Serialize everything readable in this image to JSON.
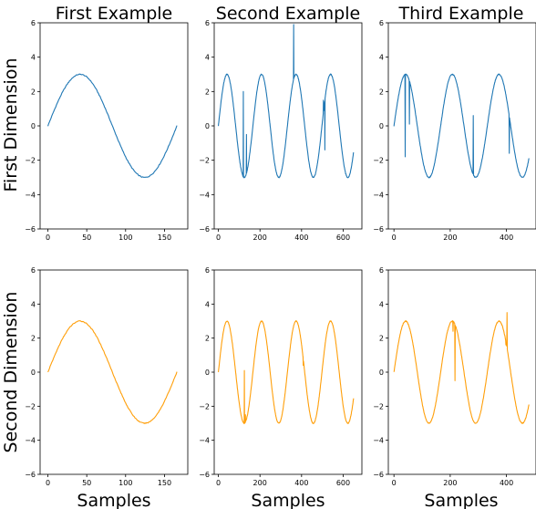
{
  "column_titles": [
    "First Example",
    "Second Example",
    "Third Example"
  ],
  "row_labels": [
    "First Dimension",
    "Second Dimension"
  ],
  "x_axis_label": "Samples",
  "colors": {
    "row1": "#1f77b4",
    "row2": "#ff9f0a"
  },
  "chart_data": [
    {
      "type": "line",
      "row": 1,
      "col": 1,
      "title": "First Example",
      "ylabel": "First Dimension",
      "xlabel": "",
      "ylim": [
        -6,
        6
      ],
      "yticks": [
        -6,
        -4,
        -2,
        0,
        2,
        4,
        6
      ],
      "xlim": [
        -10,
        180
      ],
      "xticks": [
        0,
        50,
        100,
        150
      ],
      "grid": false,
      "series": [
        {
          "length": 166,
          "period": 166,
          "amplitude": 3,
          "spikes": []
        }
      ]
    },
    {
      "type": "line",
      "row": 1,
      "col": 2,
      "title": "Second Example",
      "ylabel": "",
      "xlabel": "",
      "ylim": [
        -6,
        6
      ],
      "yticks": [
        -6,
        -4,
        -2,
        0,
        2,
        4,
        6
      ],
      "xlim": [
        -20,
        690
      ],
      "xticks": [
        0,
        200,
        400,
        600
      ],
      "grid": false,
      "series": [
        {
          "length": 650,
          "period": 166,
          "amplitude": 3,
          "spikes": [
            {
              "x": 120,
              "y": 2.0
            },
            {
              "x": 135,
              "y": -0.5
            },
            {
              "x": 362,
              "y": 5.9
            },
            {
              "x": 505,
              "y": 1.5
            },
            {
              "x": 512,
              "y": -1.4
            }
          ]
        }
      ]
    },
    {
      "type": "line",
      "row": 1,
      "col": 3,
      "title": "Third Example",
      "ylabel": "",
      "xlabel": "",
      "ylim": [
        -6,
        6
      ],
      "yticks": [
        -6,
        -4,
        -2,
        0,
        2,
        4,
        6
      ],
      "xlim": [
        -20,
        505
      ],
      "xticks": [
        0,
        200,
        400
      ],
      "grid": false,
      "series": [
        {
          "length": 480,
          "period": 166,
          "amplitude": 3,
          "spikes": [
            {
              "x": 40,
              "y": -1.8
            },
            {
              "x": 55,
              "y": 0.1
            },
            {
              "x": 282,
              "y": 0.6
            },
            {
              "x": 410,
              "y": -1.6
            }
          ]
        }
      ]
    },
    {
      "type": "line",
      "row": 2,
      "col": 1,
      "title": "",
      "ylabel": "Second Dimension",
      "xlabel": "Samples",
      "ylim": [
        -6,
        6
      ],
      "yticks": [
        -6,
        -4,
        -2,
        0,
        2,
        4,
        6
      ],
      "xlim": [
        -10,
        180
      ],
      "xticks": [
        0,
        50,
        100,
        150
      ],
      "grid": false,
      "series": [
        {
          "length": 166,
          "period": 166,
          "amplitude": 3,
          "spikes": []
        }
      ]
    },
    {
      "type": "line",
      "row": 2,
      "col": 2,
      "title": "",
      "ylabel": "",
      "xlabel": "Samples",
      "ylim": [
        -6,
        6
      ],
      "yticks": [
        -6,
        -4,
        -2,
        0,
        2,
        4,
        6
      ],
      "xlim": [
        -20,
        690
      ],
      "xticks": [
        0,
        200,
        400,
        600
      ],
      "grid": false,
      "series": [
        {
          "length": 650,
          "period": 166,
          "amplitude": 3,
          "spikes": [
            {
              "x": 125,
              "y": 0.1
            },
            {
              "x": 130,
              "y": -2.5
            },
            {
              "x": 408,
              "y": 0.4
            }
          ]
        }
      ]
    },
    {
      "type": "line",
      "row": 2,
      "col": 3,
      "title": "",
      "ylabel": "",
      "xlabel": "Samples",
      "ylim": [
        -6,
        6
      ],
      "yticks": [
        -6,
        -4,
        -2,
        0,
        2,
        4,
        6
      ],
      "xlim": [
        -20,
        505
      ],
      "xticks": [
        0,
        200,
        400
      ],
      "grid": false,
      "series": [
        {
          "length": 480,
          "period": 166,
          "amplitude": 3,
          "spikes": [
            {
              "x": 210,
              "y": 2.4
            },
            {
              "x": 217,
              "y": -0.5
            },
            {
              "x": 398,
              "y": 1.6
            },
            {
              "x": 402,
              "y": 3.5
            }
          ]
        }
      ]
    }
  ]
}
